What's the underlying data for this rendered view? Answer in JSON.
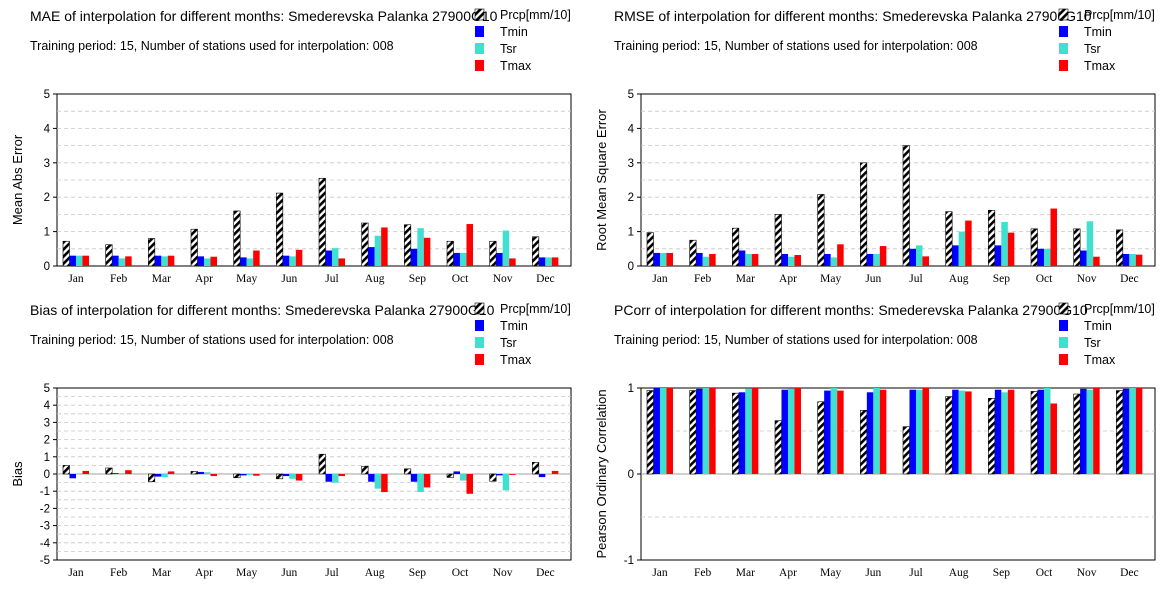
{
  "colors": {
    "Prcp": "#000000",
    "Tmin": "#0000ff",
    "Tsr": "#40e0d0",
    "Tmax": "#ff0000"
  },
  "chart_data": [
    {
      "type": "bar",
      "title": "MAE of interpolation for different months: Smederevska Palanka  27900G10",
      "subtitle": "Training period: 15, Number of stations used for interpolation: 008",
      "ylabel": "Mean Abs Error",
      "ylim": [
        0,
        5
      ],
      "yticks": [
        0,
        1,
        2,
        3,
        4,
        5
      ],
      "grid": "horizontal dashed",
      "legend": "top-right",
      "categories": [
        "Jan",
        "Feb",
        "Mar",
        "Apr",
        "May",
        "Jun",
        "Jul",
        "Aug",
        "Sep",
        "Oct",
        "Nov",
        "Dec"
      ],
      "series": [
        {
          "name": "Prcp[mm/10]",
          "values": [
            0.72,
            0.62,
            0.8,
            1.07,
            1.6,
            2.12,
            2.55,
            1.25,
            1.2,
            0.72,
            0.72,
            0.85
          ]
        },
        {
          "name": "Tmin",
          "values": [
            0.3,
            0.3,
            0.3,
            0.28,
            0.25,
            0.3,
            0.45,
            0.55,
            0.5,
            0.38,
            0.38,
            0.25
          ]
        },
        {
          "name": "Tsr",
          "values": [
            0.3,
            0.22,
            0.28,
            0.22,
            0.22,
            0.28,
            0.52,
            0.88,
            1.1,
            0.38,
            1.03,
            0.25
          ]
        },
        {
          "name": "Tmax",
          "values": [
            0.3,
            0.28,
            0.3,
            0.27,
            0.45,
            0.47,
            0.22,
            1.12,
            0.82,
            1.22,
            0.22,
            0.25
          ]
        }
      ]
    },
    {
      "type": "bar",
      "title": "RMSE of interpolation for different months: Smederevska Palanka  27900G10",
      "subtitle": "Training period: 15, Number of stations used for interpolation: 008",
      "ylabel": "Root Mean Square Error",
      "ylim": [
        0,
        5
      ],
      "yticks": [
        0,
        1,
        2,
        3,
        4,
        5
      ],
      "grid": "horizontal dashed",
      "legend": "top-right",
      "categories": [
        "Jan",
        "Feb",
        "Mar",
        "Apr",
        "May",
        "Jun",
        "Jul",
        "Aug",
        "Sep",
        "Oct",
        "Nov",
        "Dec"
      ],
      "series": [
        {
          "name": "Prcp[mm/10]",
          "values": [
            0.97,
            0.75,
            1.1,
            1.5,
            2.08,
            3.0,
            3.5,
            1.58,
            1.62,
            1.08,
            1.08,
            1.05
          ]
        },
        {
          "name": "Tmin",
          "values": [
            0.38,
            0.38,
            0.45,
            0.35,
            0.35,
            0.35,
            0.5,
            0.6,
            0.6,
            0.5,
            0.45,
            0.35
          ]
        },
        {
          "name": "Tsr",
          "values": [
            0.38,
            0.27,
            0.35,
            0.27,
            0.25,
            0.35,
            0.6,
            1.0,
            1.28,
            0.5,
            1.3,
            0.35
          ]
        },
        {
          "name": "Tmax",
          "values": [
            0.38,
            0.35,
            0.35,
            0.32,
            0.63,
            0.58,
            0.28,
            1.32,
            0.97,
            1.67,
            0.27,
            0.33
          ]
        }
      ]
    },
    {
      "type": "bar",
      "title": "Bias of interpolation for different months: Smederevska Palanka  27900G10",
      "subtitle": "Training period: 15, Number of stations used for interpolation: 008",
      "ylabel": "Bias",
      "ylim": [
        -5,
        5
      ],
      "yticks": [
        -5,
        -4,
        -3,
        -2,
        -1,
        0,
        1,
        2,
        3,
        4,
        5
      ],
      "grid": "horizontal dashed",
      "legend": "top-right",
      "categories": [
        "Jan",
        "Feb",
        "Mar",
        "Apr",
        "May",
        "Jun",
        "Jul",
        "Aug",
        "Sep",
        "Oct",
        "Nov",
        "Dec"
      ],
      "series": [
        {
          "name": "Prcp[mm/10]",
          "values": [
            0.5,
            0.35,
            -0.45,
            0.15,
            -0.22,
            -0.28,
            1.15,
            0.45,
            0.3,
            -0.2,
            -0.42,
            0.68
          ]
        },
        {
          "name": "Tmin",
          "values": [
            -0.25,
            0.05,
            -0.15,
            0.12,
            -0.08,
            -0.12,
            -0.45,
            -0.45,
            -0.45,
            0.15,
            -0.08,
            -0.18
          ]
        },
        {
          "name": "Tsr",
          "values": [
            0.03,
            0.05,
            -0.18,
            0.1,
            -0.05,
            -0.28,
            -0.5,
            -0.85,
            -1.05,
            -0.38,
            -0.95,
            0.03
          ]
        },
        {
          "name": "Tmax",
          "values": [
            0.18,
            0.22,
            0.15,
            -0.12,
            -0.1,
            -0.38,
            -0.12,
            -1.05,
            -0.78,
            -1.15,
            -0.05,
            0.18
          ]
        }
      ]
    },
    {
      "type": "bar",
      "title": "PCorr of interpolation for different months: Smederevska Palanka  27900G10",
      "subtitle": "Training period: 15, Number of stations used for interpolation: 008",
      "ylabel": "Pearson Ordinary Correlation",
      "ylim": [
        -1,
        1
      ],
      "yticks": [
        -1,
        0,
        1
      ],
      "grid": "horizontal dashed",
      "legend": "top-right",
      "categories": [
        "Jan",
        "Feb",
        "Mar",
        "Apr",
        "May",
        "Jun",
        "Jul",
        "Aug",
        "Sep",
        "Oct",
        "Nov",
        "Dec"
      ],
      "series": [
        {
          "name": "Prcp[mm/10]",
          "values": [
            0.97,
            0.97,
            0.94,
            0.62,
            0.84,
            0.74,
            0.55,
            0.9,
            0.88,
            0.96,
            0.93,
            0.97
          ]
        },
        {
          "name": "Tmin",
          "values": [
            1.0,
            0.99,
            0.95,
            0.98,
            0.97,
            0.95,
            0.98,
            0.98,
            0.98,
            0.98,
            0.99,
            0.99
          ]
        },
        {
          "name": "Tsr",
          "values": [
            1.0,
            1.0,
            0.99,
            0.99,
            1.0,
            1.0,
            0.98,
            0.97,
            0.95,
            1.0,
            0.98,
            1.0
          ]
        },
        {
          "name": "Tmax",
          "values": [
            1.0,
            1.0,
            1.0,
            1.0,
            0.97,
            0.98,
            1.0,
            0.96,
            0.98,
            0.82,
            1.0,
            1.0
          ]
        }
      ]
    }
  ]
}
